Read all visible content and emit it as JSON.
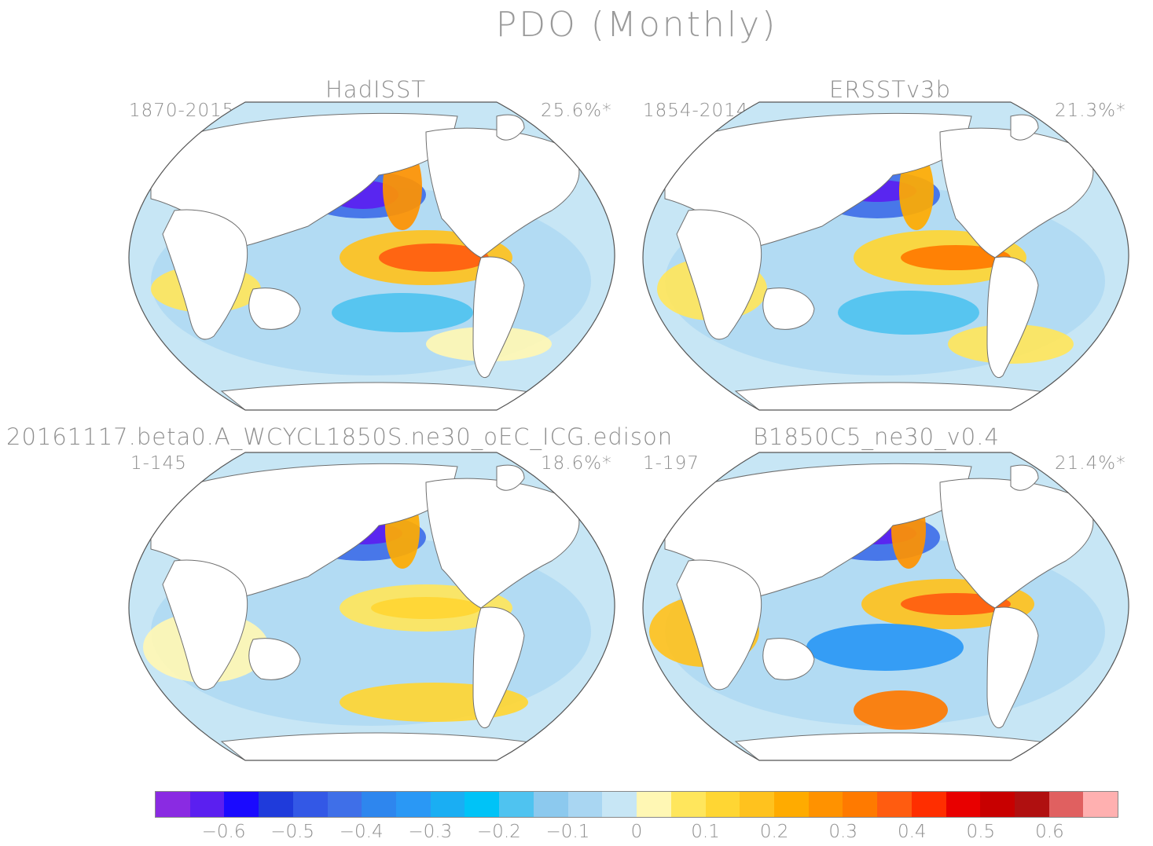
{
  "title": "PDO (Monthly)",
  "panels": [
    {
      "id": "hadisst",
      "title": "HadISST",
      "period": "1870-2015",
      "variance": "25.6%*"
    },
    {
      "id": "ersst",
      "title": "ERSSTv3b",
      "period": "1854-2014",
      "variance": "21.3%*"
    },
    {
      "id": "model1",
      "title": "20161117.beta0.A_WCYCL1850S.ne30_oEC_ICG.edison",
      "period": "1-145",
      "variance": "18.6%*"
    },
    {
      "id": "model2",
      "title": "B1850C5_ne30_v0.4",
      "period": "1-197",
      "variance": "21.4%*"
    }
  ],
  "colorbar": {
    "colors": [
      "#8a2be2",
      "#5b1ff0",
      "#1a0aff",
      "#1f3bdb",
      "#3358e6",
      "#3f6fe8",
      "#2e86ee",
      "#2a98f5",
      "#1aaef3",
      "#00c3f7",
      "#4fc3f0",
      "#8cc9ee",
      "#a9d6f2",
      "#c7e6f5",
      "#fff7b4",
      "#ffe65c",
      "#ffd633",
      "#ffc21e",
      "#ffab00",
      "#ff9200",
      "#ff7a00",
      "#ff5c10",
      "#ff2e00",
      "#e80000",
      "#c80000",
      "#b01010",
      "#e06060",
      "#ffb0b0"
    ],
    "tick_labels": [
      "-0.6",
      "-0.5",
      "-0.4",
      "-0.3",
      "-0.2",
      "-0.1",
      "0",
      "0.1",
      "0.2",
      "0.3",
      "0.4",
      "0.5",
      "0.6"
    ],
    "tick_values": [
      -0.6,
      -0.5,
      -0.4,
      -0.3,
      -0.2,
      -0.1,
      0,
      0.1,
      0.2,
      0.3,
      0.4,
      0.5,
      0.6
    ]
  }
}
